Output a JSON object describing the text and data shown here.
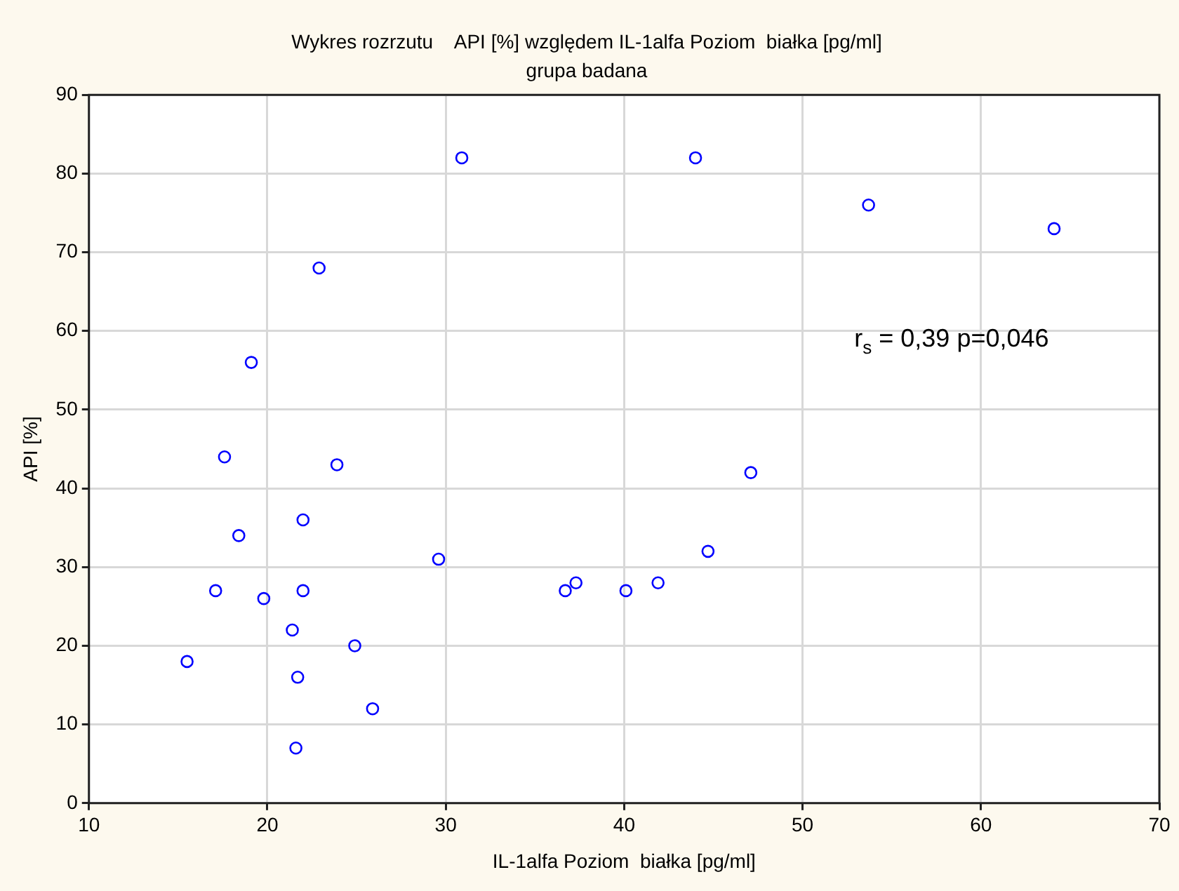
{
  "chart_data": {
    "type": "scatter",
    "title": "Wykres rozrzutu    API [%] względem IL-1alfa Poziom  białka [pg/ml]",
    "subtitle": "grupa badana",
    "xlabel": "IL-1alfa Poziom  białka [pg/ml]",
    "ylabel": "API [%]",
    "x": [
      15.5,
      17.1,
      17.6,
      18.4,
      19.1,
      19.8,
      21.4,
      21.7,
      21.6,
      22.0,
      22.0,
      22.9,
      23.9,
      24.9,
      25.9,
      29.6,
      30.9,
      36.7,
      37.3,
      40.1,
      41.9,
      44.0,
      44.7,
      47.1,
      53.7,
      64.1
    ],
    "values": [
      18,
      27,
      44,
      34,
      56,
      26,
      22,
      16,
      7,
      36,
      27,
      68,
      43,
      20,
      12,
      31,
      82,
      27,
      28,
      27,
      28,
      82,
      32,
      42,
      76,
      73
    ],
    "color": "#0000ff",
    "marker": "circle",
    "xlim": [
      10,
      70
    ],
    "xticks": [
      10,
      20,
      30,
      40,
      50,
      60,
      70
    ],
    "ylim": [
      0,
      90
    ],
    "yticks": [
      0,
      10,
      20,
      30,
      40,
      50,
      60,
      70,
      80,
      90
    ],
    "grid": true,
    "annotations": [
      "r$_{s}$ = 0,39 p=0,046"
    ]
  }
}
